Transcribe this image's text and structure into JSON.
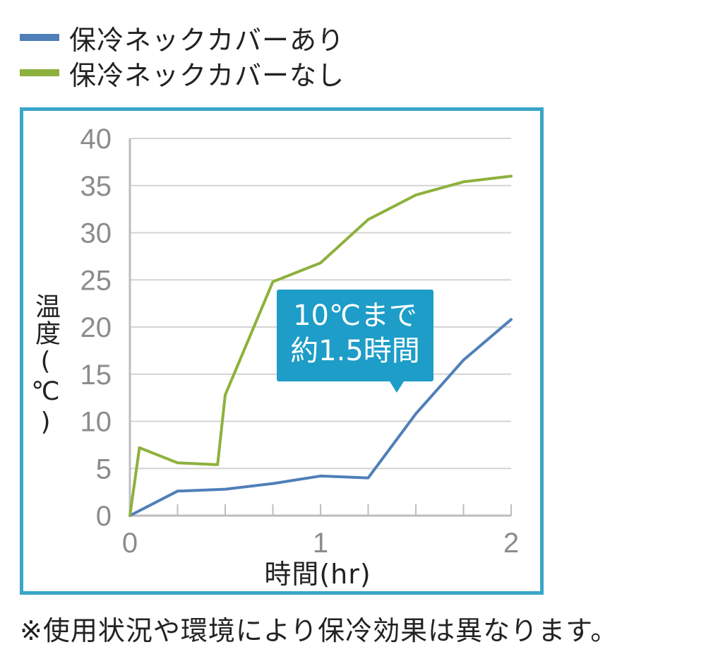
{
  "legend": [
    {
      "label": "保冷ネックカバーあり",
      "color": "#4f7fb8"
    },
    {
      "label": "保冷ネックカバーなし",
      "color": "#8db13c"
    }
  ],
  "callout": {
    "line1": "10℃まで",
    "line2": "約1.5時間",
    "color": "#1d9dc8"
  },
  "note": "※使用状況や環境により保冷効果は異なります。",
  "chart_data": {
    "type": "line",
    "xlabel": "時間(hr)",
    "ylabel": "温度(℃)",
    "xlim": [
      0,
      2
    ],
    "ylim": [
      0,
      40
    ],
    "x_ticks": [
      0,
      1,
      2
    ],
    "y_ticks": [
      0,
      5,
      10,
      15,
      20,
      25,
      30,
      35,
      40
    ],
    "grid": true,
    "legend_position": "top-left",
    "series": [
      {
        "name": "保冷ネックカバーあり",
        "color": "#4f7fb8",
        "x": [
          0,
          0.25,
          0.5,
          0.75,
          1.0,
          1.25,
          1.5,
          1.75,
          2.0
        ],
        "y": [
          0,
          2.6,
          2.8,
          3.4,
          4.2,
          4.0,
          10.8,
          16.5,
          20.8
        ]
      },
      {
        "name": "保冷ネックカバーなし",
        "color": "#8db13c",
        "x": [
          0,
          0.05,
          0.25,
          0.46,
          0.5,
          0.75,
          1.0,
          1.25,
          1.5,
          1.75,
          2.0
        ],
        "y": [
          0,
          7.2,
          5.6,
          5.4,
          12.8,
          24.8,
          26.8,
          31.4,
          34.0,
          35.4,
          36.0
        ]
      }
    ]
  }
}
